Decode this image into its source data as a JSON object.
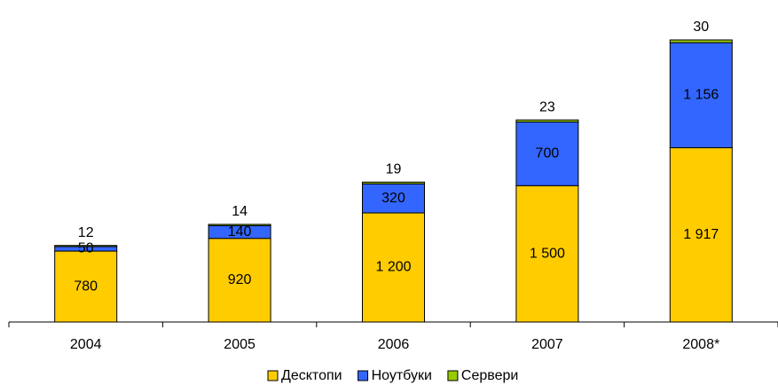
{
  "chart_data": {
    "type": "stacked-bar",
    "categories": [
      "2004",
      "2005",
      "2006",
      "2007",
      "2008*"
    ],
    "series": [
      {
        "name": "Десктопи",
        "color": "#ffcc00",
        "values": [
          780,
          920,
          1200,
          1500,
          1917
        ],
        "value_labels": [
          "780",
          "920",
          "1 200",
          "1 500",
          "1 917"
        ]
      },
      {
        "name": "Ноутбуки",
        "color": "#3366ff",
        "values": [
          50,
          140,
          320,
          700,
          1156
        ],
        "value_labels": [
          "50",
          "140",
          "320",
          "700",
          "1 156"
        ]
      },
      {
        "name": "Сервери",
        "color": "#99cc00",
        "values": [
          12,
          14,
          19,
          23,
          30
        ],
        "value_labels": [
          "12",
          "14",
          "19",
          "23",
          "30"
        ]
      }
    ],
    "legend": "bottom"
  }
}
